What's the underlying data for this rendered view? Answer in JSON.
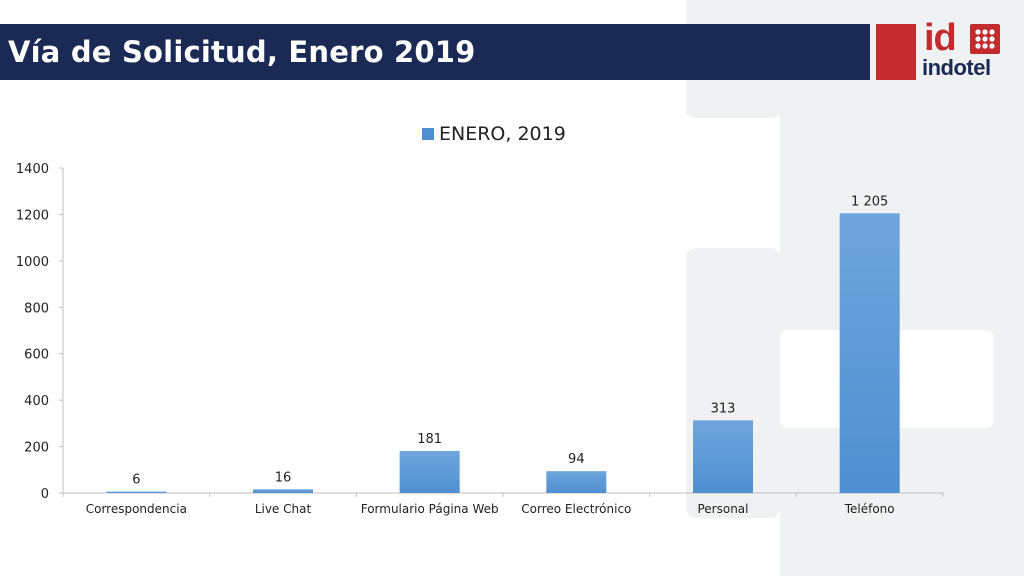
{
  "header": {
    "title": "Vía de Solicitud, Enero 2019",
    "logo_mark": "id",
    "logo_text": "indotel"
  },
  "colors": {
    "title_bar": "#1b2a55",
    "brand_red": "#c42b2f",
    "bar": "#4f8fd0"
  },
  "chart_data": {
    "type": "bar",
    "categories": [
      "Correspondencia",
      "Live Chat",
      "Formulario Página Web",
      "Correo Electrónico",
      "Personal",
      "Teléfono"
    ],
    "series": [
      {
        "name": "ENERO, 2019",
        "values": [
          6,
          16,
          181,
          94,
          313,
          1205
        ],
        "data_labels": [
          "6",
          "16",
          "181",
          "94",
          "313",
          "1 205"
        ]
      }
    ],
    "ylim": [
      0,
      1400
    ],
    "yticks": [
      "0",
      "200",
      "400",
      "600",
      "800",
      "1000",
      "1200",
      "1400"
    ],
    "grid": false,
    "legend_position": "top-center"
  }
}
